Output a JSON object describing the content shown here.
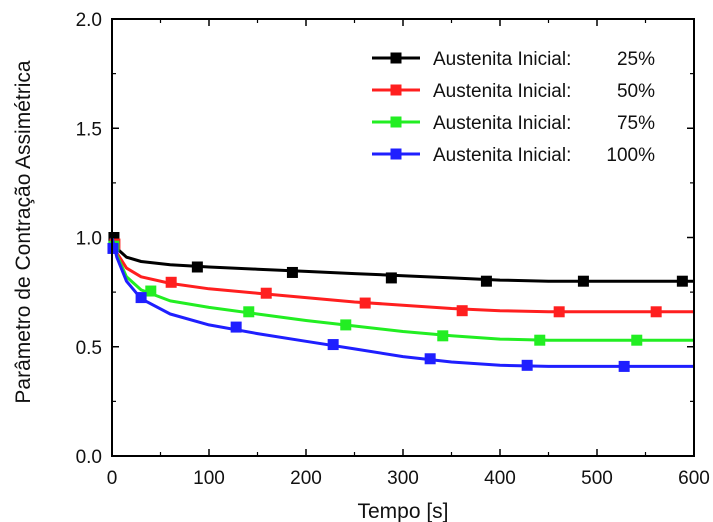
{
  "chart_data": {
    "type": "line",
    "xlabel": "Tempo [s]",
    "ylabel": "Parâmetro de Contração Assimétrica",
    "xlim": [
      0,
      600
    ],
    "ylim": [
      0.0,
      2.0
    ],
    "x_ticks": [
      "0",
      "100",
      "200",
      "300",
      "400",
      "500",
      "600"
    ],
    "y_ticks": [
      "0.0",
      "0.5",
      "1.0",
      "1.5",
      "2.0"
    ],
    "grid": false,
    "legend_position": "top-right",
    "series": [
      {
        "name": "Austenita Inicial:",
        "value_label": "25%",
        "color": "#000000",
        "curve": [
          [
            0,
            1.0
          ],
          [
            5,
            0.95
          ],
          [
            15,
            0.91
          ],
          [
            30,
            0.89
          ],
          [
            60,
            0.875
          ],
          [
            100,
            0.865
          ],
          [
            150,
            0.855
          ],
          [
            200,
            0.845
          ],
          [
            250,
            0.835
          ],
          [
            300,
            0.825
          ],
          [
            350,
            0.815
          ],
          [
            400,
            0.805
          ],
          [
            450,
            0.8
          ],
          [
            500,
            0.8
          ],
          [
            550,
            0.8
          ],
          [
            600,
            0.8
          ]
        ],
        "markers": [
          [
            2,
            1.0
          ],
          [
            88,
            0.865
          ],
          [
            186,
            0.84
          ],
          [
            288,
            0.815
          ],
          [
            386,
            0.8
          ],
          [
            486,
            0.8
          ],
          [
            588,
            0.8
          ]
        ]
      },
      {
        "name": "Austenita Inicial:",
        "value_label": "50%",
        "color": "#ff1f1f",
        "curve": [
          [
            0,
            1.0
          ],
          [
            5,
            0.93
          ],
          [
            15,
            0.86
          ],
          [
            30,
            0.82
          ],
          [
            60,
            0.79
          ],
          [
            100,
            0.765
          ],
          [
            150,
            0.745
          ],
          [
            200,
            0.725
          ],
          [
            250,
            0.705
          ],
          [
            300,
            0.69
          ],
          [
            350,
            0.675
          ],
          [
            400,
            0.665
          ],
          [
            450,
            0.66
          ],
          [
            500,
            0.66
          ],
          [
            550,
            0.66
          ],
          [
            600,
            0.66
          ]
        ],
        "markers": [
          [
            3,
            0.97
          ],
          [
            61,
            0.795
          ],
          [
            159,
            0.745
          ],
          [
            261,
            0.7
          ],
          [
            361,
            0.665
          ],
          [
            461,
            0.66
          ],
          [
            561,
            0.66
          ]
        ]
      },
      {
        "name": "Austenita Inicial:",
        "value_label": "75%",
        "color": "#22ee22",
        "curve": [
          [
            0,
            1.0
          ],
          [
            5,
            0.92
          ],
          [
            15,
            0.82
          ],
          [
            30,
            0.76
          ],
          [
            60,
            0.71
          ],
          [
            100,
            0.68
          ],
          [
            150,
            0.65
          ],
          [
            200,
            0.62
          ],
          [
            250,
            0.595
          ],
          [
            300,
            0.57
          ],
          [
            350,
            0.55
          ],
          [
            400,
            0.535
          ],
          [
            450,
            0.53
          ],
          [
            500,
            0.53
          ],
          [
            550,
            0.53
          ],
          [
            600,
            0.53
          ]
        ],
        "markers": [
          [
            2,
            0.96
          ],
          [
            40,
            0.755
          ],
          [
            141,
            0.66
          ],
          [
            241,
            0.6
          ],
          [
            341,
            0.55
          ],
          [
            441,
            0.53
          ],
          [
            541,
            0.53
          ]
        ]
      },
      {
        "name": "Austenita Inicial:",
        "value_label": "100%",
        "color": "#1f1fff",
        "curve": [
          [
            0,
            1.0
          ],
          [
            5,
            0.91
          ],
          [
            15,
            0.8
          ],
          [
            30,
            0.72
          ],
          [
            60,
            0.65
          ],
          [
            100,
            0.6
          ],
          [
            150,
            0.56
          ],
          [
            200,
            0.525
          ],
          [
            250,
            0.49
          ],
          [
            300,
            0.455
          ],
          [
            350,
            0.43
          ],
          [
            400,
            0.415
          ],
          [
            450,
            0.41
          ],
          [
            500,
            0.41
          ],
          [
            550,
            0.41
          ],
          [
            600,
            0.41
          ]
        ],
        "markers": [
          [
            1,
            0.95
          ],
          [
            30,
            0.725
          ],
          [
            128,
            0.59
          ],
          [
            228,
            0.51
          ],
          [
            328,
            0.445
          ],
          [
            428,
            0.415
          ],
          [
            528,
            0.41
          ]
        ]
      }
    ]
  }
}
